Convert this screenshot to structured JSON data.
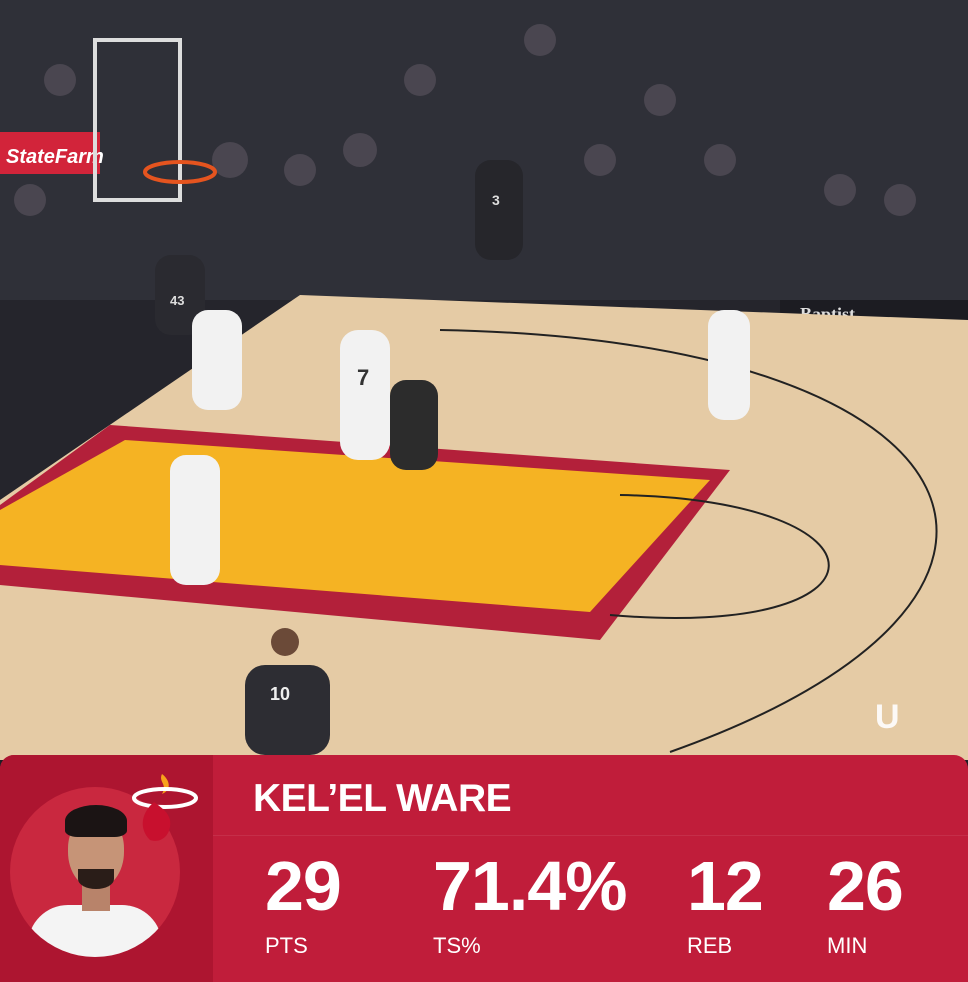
{
  "scene": {
    "sponsor_left": "StateFarm",
    "sponsor_right": "Baptist",
    "jersey_numbers": [
      "7",
      "3",
      "43",
      "10"
    ],
    "watermark": "U"
  },
  "stat_card": {
    "player_name": "KEL’EL WARE",
    "team_logo": "miami-heat-logo",
    "stats": [
      {
        "value": "29",
        "label": "PTS"
      },
      {
        "value": "71.4%",
        "label": "TS%"
      },
      {
        "value": "12",
        "label": "REB"
      },
      {
        "value": "26",
        "label": "MIN"
      }
    ],
    "colors": {
      "primary": "#c01d3a",
      "dark": "#ad1530",
      "court_paint": "#f5b323"
    }
  }
}
